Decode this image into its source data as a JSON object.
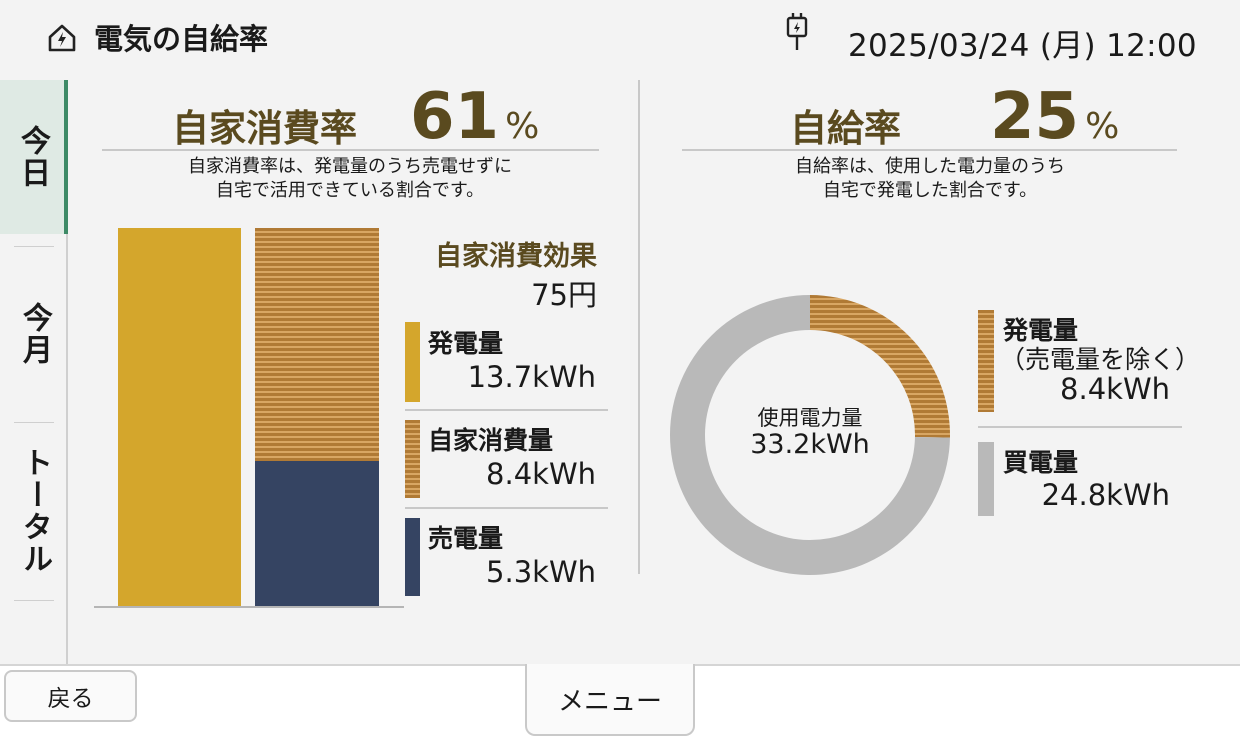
{
  "header": {
    "title": "電気の自給率",
    "datetime": "2025/03/24 (月) 12:00",
    "home_icon": "home-lightning-icon",
    "plug_icon": "plug-icon"
  },
  "tabs": [
    {
      "label": "今日",
      "selected": true
    },
    {
      "label": "今月",
      "selected": false
    },
    {
      "label": "トータル",
      "selected": false
    }
  ],
  "self_consumption": {
    "title": "自家消費率",
    "percent": "61",
    "unit": "%",
    "desc_line1": "自家消費率は、発電量のうち売電せずに",
    "desc_line2": "自宅で活用できている割合です。",
    "effect_label": "自家消費効果",
    "effect_value": "75円",
    "legend": [
      {
        "label": "発電量",
        "value": "13.7kWh"
      },
      {
        "label": "自家消費量",
        "value": "8.4kWh"
      },
      {
        "label": "売電量",
        "value": "5.3kWh"
      }
    ]
  },
  "self_sufficiency": {
    "title": "自給率",
    "percent": "25",
    "unit": "%",
    "desc_line1": "自給率は、使用した電力量のうち",
    "desc_line2": "自宅で発電した割合です。",
    "center_label": "使用電力量",
    "center_value": "33.2kWh",
    "legend": [
      {
        "label1": "発電量",
        "label2": "（売電量を除く）",
        "value": "8.4kWh"
      },
      {
        "label1": "買電量",
        "value": "24.8kWh"
      }
    ]
  },
  "chart_data": [
    {
      "type": "bar",
      "categories": [
        "発電量",
        "自家消費量 / 売電量"
      ],
      "series": [
        {
          "name": "発電量",
          "values": [
            13.7,
            0
          ]
        },
        {
          "name": "自家消費量",
          "values": [
            0,
            8.4
          ]
        },
        {
          "name": "売電量",
          "values": [
            0,
            5.3
          ]
        }
      ],
      "unit": "kWh"
    },
    {
      "type": "pie",
      "categories": [
        "発電量（売電量を除く）",
        "買電量"
      ],
      "values": [
        8.4,
        24.8
      ],
      "total": 33.2,
      "unit": "kWh"
    }
  ],
  "colors": {
    "generation": "#d4a62c",
    "self_consumption": "#b07a35",
    "sold": "#354462",
    "purchased": "#b9b9b9",
    "accent_title": "#5a4a1f",
    "tab_selected_bg": "#dfeae4",
    "tab_selected_border": "#3d8a66"
  },
  "buttons": {
    "back": "戻る",
    "menu": "メニュー"
  }
}
